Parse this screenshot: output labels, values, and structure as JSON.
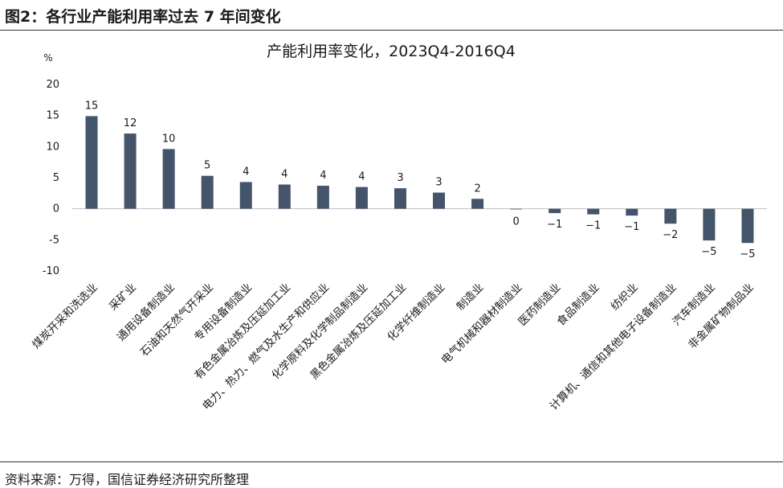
{
  "figure": {
    "caption": "图2：各行业产能利用率过去 7 年间变化",
    "source": "资料来源：万得，国信证券经济研究所整理"
  },
  "chart_data": {
    "type": "bar",
    "title": "产能利用率变化，2023Q4-2016Q4",
    "unit": "%",
    "xlabel": "",
    "ylabel": "",
    "ylim": [
      -10,
      20
    ],
    "yticks": [
      20,
      15,
      10,
      5,
      0,
      -5,
      -10
    ],
    "ytick_labels": [
      "20",
      "15",
      "10",
      "5",
      "0",
      "-5",
      "-10"
    ],
    "grid": false,
    "legend": "none",
    "bar_color": "#44546a",
    "categories": [
      "煤炭开采和洗选业",
      "采矿业",
      "通用设备制造业",
      "石油和天然气开采业",
      "专用设备制造业",
      "有色金属冶炼及压延加工业",
      "电力、热力、燃气及水生产和供应业",
      "化学原料及化学制品制造业",
      "黑色金属冶炼及压延加工业",
      "化学纤维制造业",
      "制造业",
      "电气机械和器材制造业",
      "医药制造业",
      "食品制造业",
      "纺织业",
      "计算机、通信和其他电子设备制造业",
      "汽车制造业",
      "非金属矿物制品业"
    ],
    "values": [
      14.9,
      12.1,
      9.6,
      5.3,
      4.3,
      3.9,
      3.7,
      3.5,
      3.3,
      2.6,
      1.6,
      -0.1,
      -0.7,
      -0.9,
      -1.1,
      -2.4,
      -5.1,
      -5.5
    ],
    "data_labels": [
      "15",
      "12",
      "10",
      "5",
      "4",
      "4",
      "4",
      "4",
      "3",
      "3",
      "2",
      "0",
      "−1",
      "−1",
      "−1",
      "−2",
      "−5",
      "−5"
    ]
  }
}
